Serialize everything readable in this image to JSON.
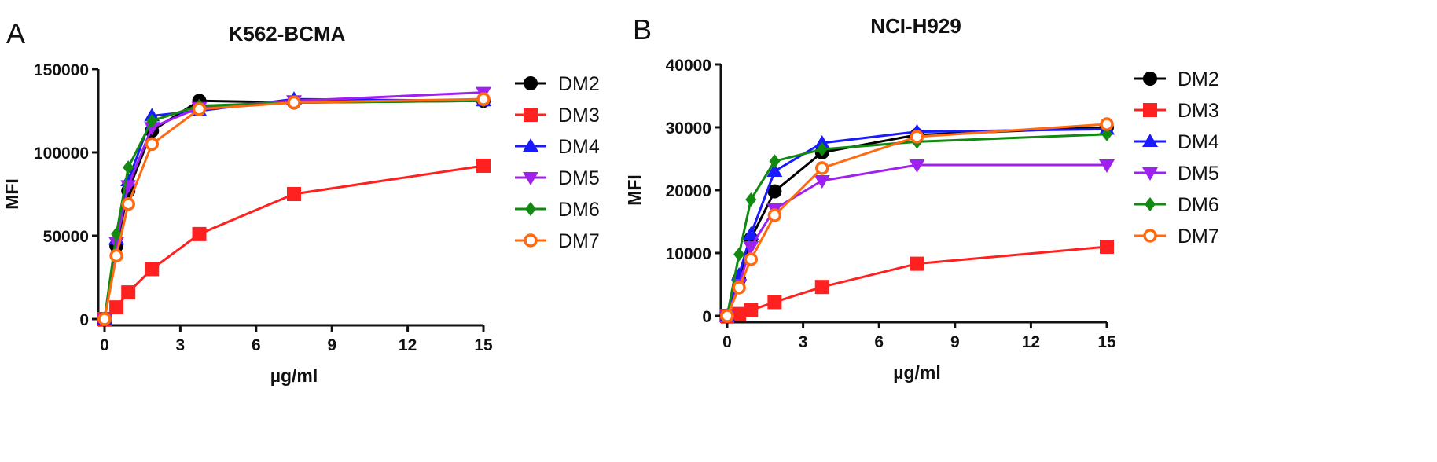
{
  "chart_data": [
    {
      "type": "line",
      "panel_label": "A",
      "title": "K562-BCMA",
      "xlabel": "µg/ml",
      "ylabel": "MFI",
      "xlim": [
        0,
        15
      ],
      "ylim": [
        0,
        150000
      ],
      "xticks": [
        0,
        3,
        6,
        9,
        12,
        15
      ],
      "yticks": [
        0,
        50000,
        100000,
        150000
      ],
      "grid": false,
      "legend": "right",
      "x": [
        0,
        0.47,
        0.94,
        1.875,
        3.75,
        7.5,
        15
      ],
      "series": [
        {
          "name": "DM2",
          "color": "#000000",
          "marker": "circle",
          "values": [
            0,
            44000,
            77000,
            113000,
            131000,
            130000,
            131000
          ]
        },
        {
          "name": "DM3",
          "color": "#ff2020",
          "marker": "square",
          "values": [
            0,
            7000,
            16000,
            30000,
            51000,
            75000,
            92000
          ]
        },
        {
          "name": "DM4",
          "color": "#1a1aff",
          "marker": "triangle-up",
          "values": [
            0,
            48000,
            83000,
            122000,
            125000,
            132000,
            131000
          ]
        },
        {
          "name": "DM5",
          "color": "#a020f0",
          "marker": "triangle-down",
          "values": [
            0,
            46000,
            80000,
            115000,
            127000,
            131000,
            136000
          ]
        },
        {
          "name": "DM6",
          "color": "#128a12",
          "marker": "diamond",
          "values": [
            0,
            51000,
            91000,
            119000,
            128000,
            130000,
            131000
          ]
        },
        {
          "name": "DM7",
          "color": "#ff6a10",
          "marker": "open-circle",
          "values": [
            0,
            38000,
            69000,
            105000,
            126000,
            130000,
            132000
          ]
        }
      ]
    },
    {
      "type": "line",
      "panel_label": "B",
      "title": "NCI-H929",
      "xlabel": "µg/ml",
      "ylabel": "MFI",
      "xlim": [
        0,
        15
      ],
      "ylim": [
        0,
        40000
      ],
      "xticks": [
        0,
        3,
        6,
        9,
        12,
        15
      ],
      "yticks": [
        0,
        10000,
        20000,
        30000,
        40000
      ],
      "grid": false,
      "legend": "right",
      "x": [
        0,
        0.47,
        0.94,
        1.875,
        3.75,
        7.5,
        15
      ],
      "series": [
        {
          "name": "DM2",
          "color": "#000000",
          "marker": "circle",
          "values": [
            0,
            5800,
            12300,
            19800,
            26000,
            28800,
            30000
          ]
        },
        {
          "name": "DM3",
          "color": "#ff2020",
          "marker": "square",
          "values": [
            0,
            300,
            900,
            2200,
            4600,
            8300,
            11000
          ]
        },
        {
          "name": "DM4",
          "color": "#1a1aff",
          "marker": "triangle-up",
          "values": [
            0,
            6500,
            13000,
            23000,
            27500,
            29300,
            29700
          ]
        },
        {
          "name": "DM5",
          "color": "#a020f0",
          "marker": "triangle-down",
          "values": [
            0,
            5000,
            11000,
            17000,
            21500,
            24000,
            24000
          ]
        },
        {
          "name": "DM6",
          "color": "#128a12",
          "marker": "diamond",
          "values": [
            0,
            9800,
            18500,
            24600,
            26500,
            27700,
            28900
          ]
        },
        {
          "name": "DM7",
          "color": "#ff6a10",
          "marker": "open-circle",
          "values": [
            0,
            4500,
            9000,
            16000,
            23500,
            28500,
            30500
          ]
        }
      ]
    }
  ]
}
